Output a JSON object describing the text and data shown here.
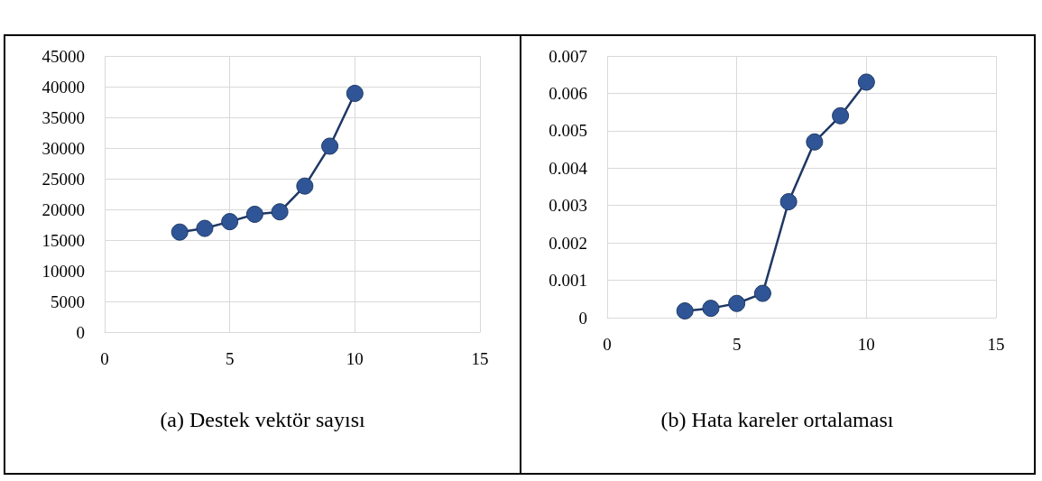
{
  "chart_data": [
    {
      "type": "line",
      "title": "(a) Destek vektör sayısı",
      "x": [
        3,
        4,
        5,
        6,
        7,
        8,
        9,
        10
      ],
      "series": [
        {
          "color": "#2f5597",
          "values": [
            16300,
            16900,
            18000,
            19200,
            19600,
            23800,
            30300,
            38900
          ]
        }
      ],
      "xlim": [
        0,
        15
      ],
      "xticks": [
        0,
        5,
        10,
        15
      ],
      "ylim": [
        0,
        45000
      ],
      "yticks": [
        0,
        5000,
        10000,
        15000,
        20000,
        25000,
        30000,
        35000,
        40000,
        45000
      ],
      "grid": true,
      "marker": "circle",
      "line_style": "solid"
    },
    {
      "type": "line",
      "title": "(b) Hata kareler ortalaması",
      "x": [
        3,
        4,
        5,
        6,
        7,
        8,
        9,
        10
      ],
      "series": [
        {
          "color": "#2f5597",
          "values": [
            0.00018,
            0.00025,
            0.00038,
            0.00065,
            0.0031,
            0.0047,
            0.0054,
            0.0063
          ]
        }
      ],
      "xlim": [
        0,
        15
      ],
      "xticks": [
        0,
        5,
        10,
        15
      ],
      "ylim": [
        0,
        0.007
      ],
      "yticks": [
        0,
        0.001,
        0.002,
        0.003,
        0.004,
        0.005,
        0.006,
        0.007
      ],
      "grid": true,
      "marker": "circle",
      "line_style": "solid"
    }
  ]
}
